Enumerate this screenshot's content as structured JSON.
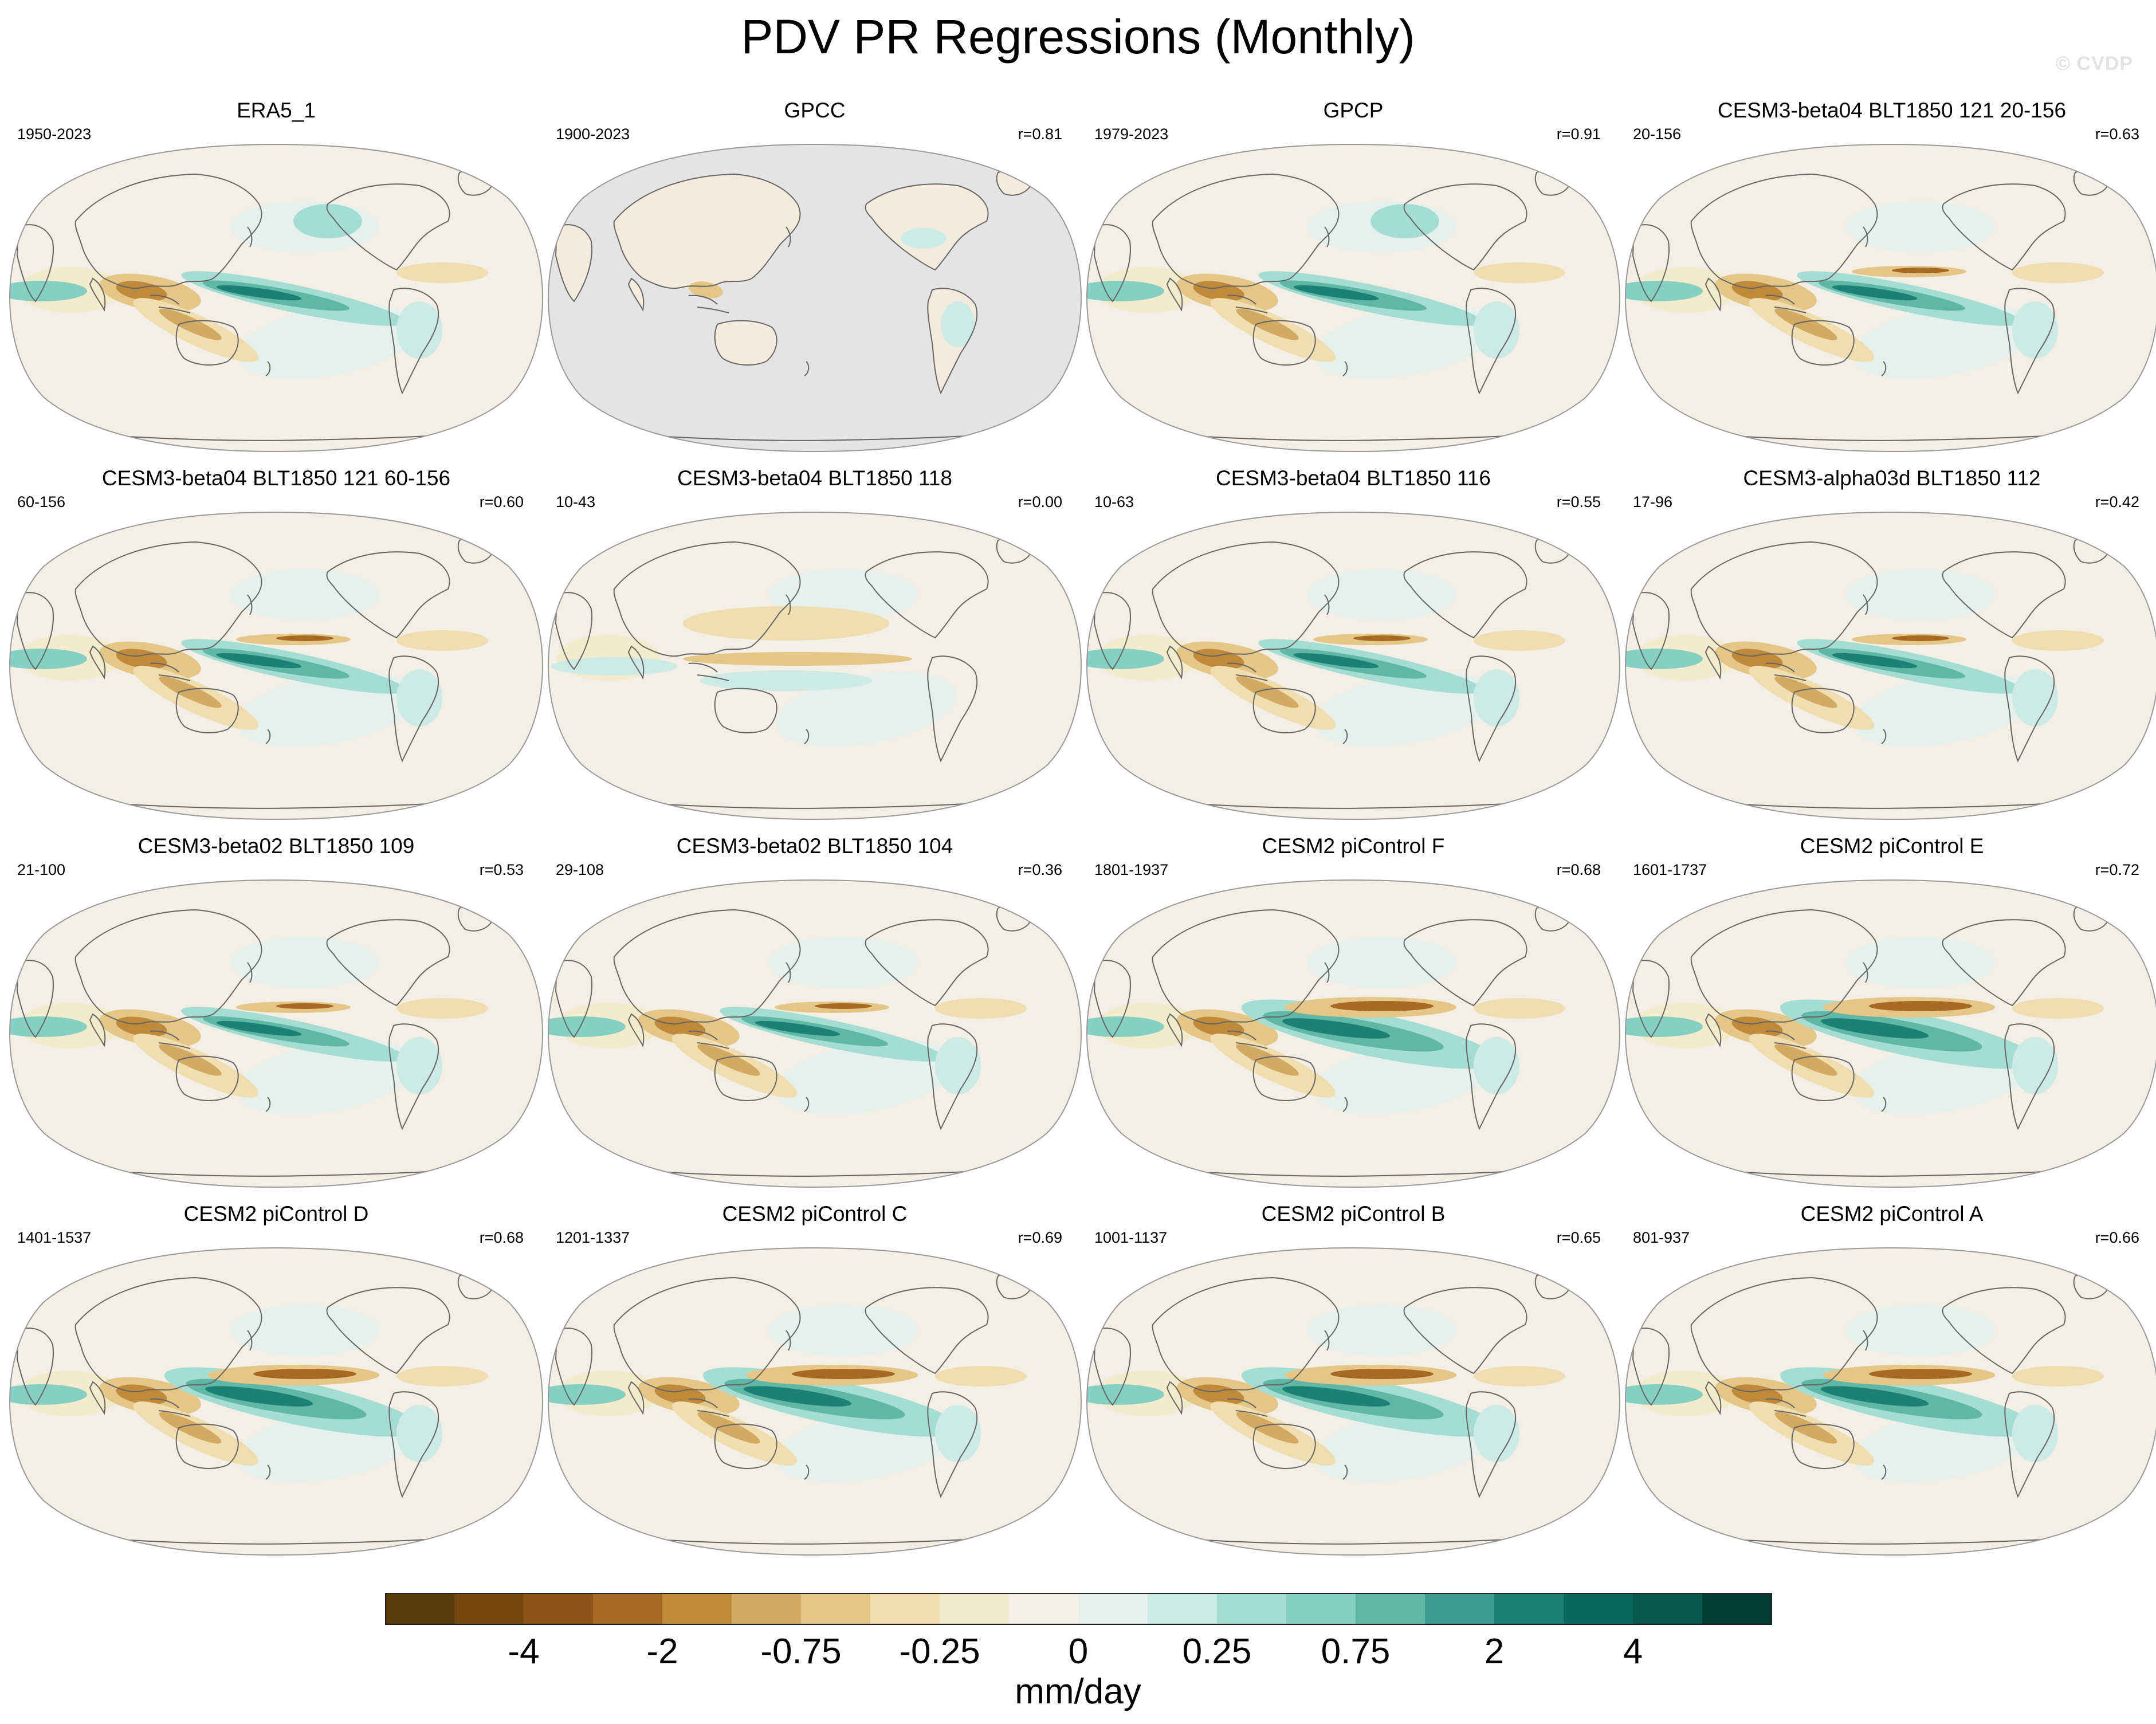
{
  "title": "PDV PR Regressions (Monthly)",
  "watermark": "© CVDP",
  "colors": {
    "ocean_default": "#f3efe6",
    "missing": "#e4e4e4",
    "coast": "#666666"
  },
  "chart_data": {
    "type": "heatmap",
    "title": "PDV PR Regressions (Monthly)",
    "colorbar": {
      "units": "mm/day",
      "tick_labels": [
        "-4",
        "-2",
        "-0.75",
        "-0.25",
        "0",
        "0.25",
        "0.75",
        "2",
        "4"
      ],
      "colors": [
        "#5b3a10",
        "#754810",
        "#8c5314",
        "#a76a25",
        "#bf8a3c",
        "#d3aa62",
        "#e5c686",
        "#f0ddb0",
        "#f4eacc",
        "#f4f0e7",
        "#e6f1ee",
        "#cdeae4",
        "#a6ddd3",
        "#85d0c2",
        "#5fb7a8",
        "#3c9c8f",
        "#1e8074",
        "#08695c",
        "#05594d",
        "#023d33"
      ]
    },
    "panels": [
      {
        "name": "ERA5_1",
        "years": "1950-2023",
        "r": "",
        "gpcc": false,
        "pattern": "era5"
      },
      {
        "name": "GPCC",
        "years": "1900-2023",
        "r": "r=0.81",
        "gpcc": true,
        "pattern": "gpcc"
      },
      {
        "name": "GPCP",
        "years": "1979-2023",
        "r": "r=0.91",
        "gpcc": false,
        "pattern": "gpcp"
      },
      {
        "name": "CESM3-beta04 BLT1850 121 20-156",
        "years": "20-156",
        "r": "r=0.63",
        "gpcc": false,
        "pattern": "model"
      },
      {
        "name": "CESM3-beta04 BLT1850 121 60-156",
        "years": "60-156",
        "r": "r=0.60",
        "gpcc": false,
        "pattern": "model"
      },
      {
        "name": "CESM3-beta04 BLT1850 118",
        "years": "10-43",
        "r": "r=0.00",
        "gpcc": false,
        "pattern": "weak"
      },
      {
        "name": "CESM3-beta04 BLT1850 116",
        "years": "10-63",
        "r": "r=0.55",
        "gpcc": false,
        "pattern": "model"
      },
      {
        "name": "CESM3-alpha03d BLT1850 112",
        "years": "17-96",
        "r": "r=0.42",
        "gpcc": false,
        "pattern": "model"
      },
      {
        "name": "CESM3-beta02 BLT1850 109",
        "years": "21-100",
        "r": "r=0.53",
        "gpcc": false,
        "pattern": "model"
      },
      {
        "name": "CESM3-beta02 BLT1850 104",
        "years": "29-108",
        "r": "r=0.36",
        "gpcc": false,
        "pattern": "model"
      },
      {
        "name": "CESM2 piControl F",
        "years": "1801-1937",
        "r": "r=0.68",
        "gpcc": false,
        "pattern": "cesm2"
      },
      {
        "name": "CESM2 piControl E",
        "years": "1601-1737",
        "r": "r=0.72",
        "gpcc": false,
        "pattern": "cesm2"
      },
      {
        "name": "CESM2 piControl D",
        "years": "1401-1537",
        "r": "r=0.68",
        "gpcc": false,
        "pattern": "cesm2"
      },
      {
        "name": "CESM2 piControl C",
        "years": "1201-1337",
        "r": "r=0.69",
        "gpcc": false,
        "pattern": "cesm2"
      },
      {
        "name": "CESM2 piControl B",
        "years": "1001-1137",
        "r": "r=0.65",
        "gpcc": false,
        "pattern": "cesm2"
      },
      {
        "name": "CESM2 piControl A",
        "years": "801-937",
        "r": "r=0.66",
        "gpcc": false,
        "pattern": "cesm2"
      }
    ]
  }
}
